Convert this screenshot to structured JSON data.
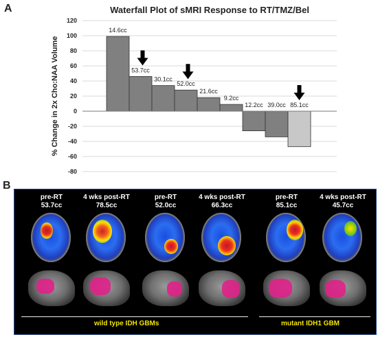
{
  "panel_a_label": "A",
  "panel_b_label": "B",
  "chart_data": {
    "type": "bar",
    "title": "Waterfall Plot of sMRI Response to RT/TMZ/Bel",
    "ylabel": "% Change in 2x Cho:NAA  Volume",
    "ylim": [
      -80,
      120
    ],
    "yticks": [
      120,
      100,
      80,
      60,
      40,
      20,
      0,
      -20,
      -40,
      -60,
      -80
    ],
    "grid": true,
    "categories": [
      "14.6cc",
      "53.7cc",
      "30.1cc",
      "52.0cc",
      "21.6cc",
      "9.2cc",
      "12.2cc",
      "39.0cc",
      "85.1cc"
    ],
    "values": [
      99,
      46,
      34,
      28,
      18,
      9,
      -26,
      -34,
      -47
    ],
    "bar_colors": [
      "#808080",
      "#808080",
      "#808080",
      "#808080",
      "#808080",
      "#808080",
      "#808080",
      "#808080",
      "#c8c8c8"
    ],
    "arrows_on": [
      "53.7cc",
      "52.0cc",
      "85.1cc"
    ]
  },
  "scans": [
    {
      "label": "pre-RT",
      "volume": "53.7cc"
    },
    {
      "label": "4 wks post-RT",
      "volume": "78.5cc"
    },
    {
      "label": "pre-RT",
      "volume": "52.0cc"
    },
    {
      "label": "4 wks post-RT",
      "volume": "66.3cc"
    },
    {
      "label": "pre-RT",
      "volume": "85.1cc"
    },
    {
      "label": "4 wks post-RT",
      "volume": "45.7cc"
    }
  ],
  "groups": {
    "wild_type": "wild type IDH GBMs",
    "mutant": "mutant IDH1 GBM"
  }
}
